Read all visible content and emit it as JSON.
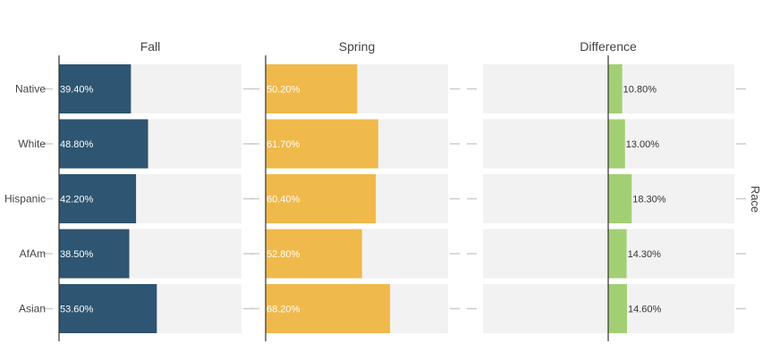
{
  "chart_data": {
    "type": "bar",
    "orientation": "horizontal",
    "categories": [
      "Native",
      "White",
      "Hispanic",
      "AfAm",
      "Asian"
    ],
    "panels": [
      {
        "title": "Fall",
        "values": [
          39.4,
          48.8,
          42.2,
          38.5,
          53.6
        ],
        "labels": [
          "39.40%",
          "48.80%",
          "42.20%",
          "38.50%",
          "53.60%"
        ],
        "xlim": [
          0,
          100
        ],
        "color": "#2e5571",
        "label_color": "#ffffff"
      },
      {
        "title": "Spring",
        "values": [
          50.2,
          61.7,
          60.4,
          52.8,
          68.2
        ],
        "labels": [
          "50.20%",
          "61.70%",
          "60.40%",
          "52.80%",
          "68.20%"
        ],
        "xlim": [
          0,
          100
        ],
        "color": "#f0b94b",
        "label_color": "#ffffff"
      },
      {
        "title": "Difference",
        "values": [
          10.8,
          13.0,
          18.3,
          14.3,
          14.6
        ],
        "labels": [
          "10.80%",
          "13.00%",
          "18.30%",
          "14.30%",
          "14.60%"
        ],
        "xlim": [
          -100,
          100
        ],
        "color": "#a3cf74",
        "label_color": "#333333"
      }
    ],
    "facet_label": "Race",
    "background_color": "#f2f2f2",
    "grid": false,
    "legend": "none"
  }
}
